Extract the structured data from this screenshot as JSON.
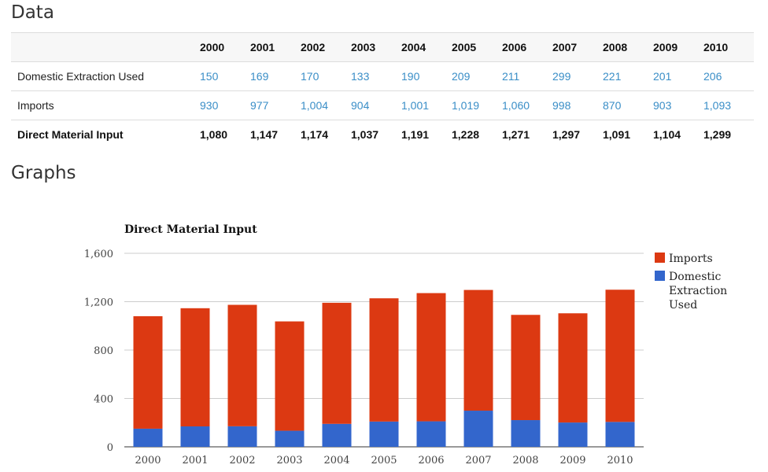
{
  "sections": {
    "data_title": "Data",
    "graphs_title": "Graphs"
  },
  "table": {
    "years": [
      "2000",
      "2001",
      "2002",
      "2003",
      "2004",
      "2005",
      "2006",
      "2007",
      "2008",
      "2009",
      "2010"
    ],
    "rows": [
      {
        "label": "Domestic Extraction Used",
        "values": [
          "150",
          "169",
          "170",
          "133",
          "190",
          "209",
          "211",
          "299",
          "221",
          "201",
          "206"
        ]
      },
      {
        "label": "Imports",
        "values": [
          "930",
          "977",
          "1,004",
          "904",
          "1,001",
          "1,019",
          "1,060",
          "998",
          "870",
          "903",
          "1,093"
        ]
      },
      {
        "label": "Direct Material Input",
        "values": [
          "1,080",
          "1,147",
          "1,174",
          "1,037",
          "1,191",
          "1,228",
          "1,271",
          "1,297",
          "1,091",
          "1,104",
          "1,299"
        ],
        "bold": true
      }
    ]
  },
  "colors": {
    "imports": "#dc3912",
    "domestic": "#3366cc",
    "link": "#3a8ec7",
    "grid": "#cccccc"
  },
  "chart_data": {
    "type": "bar",
    "stacked": true,
    "title": "Direct Material Input",
    "categories": [
      "2000",
      "2001",
      "2002",
      "2003",
      "2004",
      "2005",
      "2006",
      "2007",
      "2008",
      "2009",
      "2010"
    ],
    "series": [
      {
        "name": "Domestic Extraction Used",
        "legend": [
          "Domestic",
          "Extraction",
          "Used"
        ],
        "color": "#3366cc",
        "values": [
          150,
          169,
          170,
          133,
          190,
          209,
          211,
          299,
          221,
          201,
          206
        ]
      },
      {
        "name": "Imports",
        "legend": [
          "Imports"
        ],
        "color": "#dc3912",
        "values": [
          930,
          977,
          1004,
          904,
          1001,
          1019,
          1060,
          998,
          870,
          903,
          1093
        ]
      }
    ],
    "yticks": [
      0,
      400,
      800,
      1200,
      1600
    ],
    "ytick_labels": [
      "0",
      "400",
      "800",
      "1,200",
      "1,600"
    ],
    "ylim": [
      0,
      1600
    ],
    "grid": true,
    "legend_position": "right"
  }
}
